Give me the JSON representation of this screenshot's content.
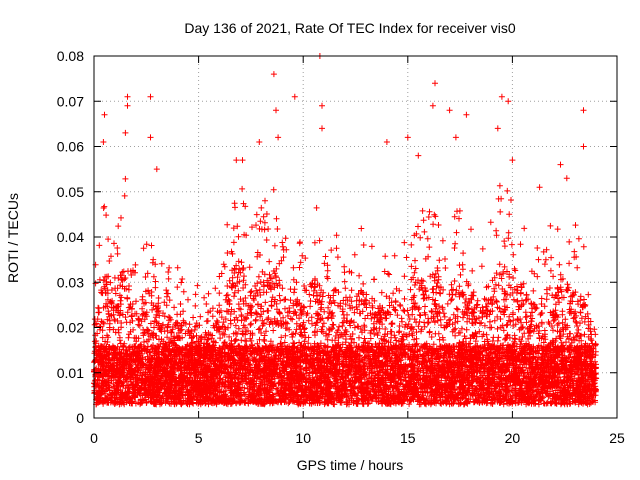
{
  "chart_data": {
    "type": "scatter",
    "title": "Day 136 of 2021, Rate Of TEC Index for receiver vis0",
    "xlabel": "GPS time / hours",
    "ylabel": "ROTI / TECUs",
    "xlim": [
      0,
      25
    ],
    "ylim": [
      0,
      0.08
    ],
    "xticks": [
      0,
      5,
      10,
      15,
      20,
      25
    ],
    "xtick_labels": [
      "0",
      "5",
      "10",
      "15",
      "20",
      "25"
    ],
    "yticks": [
      0,
      0.01,
      0.02,
      0.03,
      0.04,
      0.05,
      0.06,
      0.07,
      0.08
    ],
    "ytick_labels": [
      "0",
      "0.01",
      "0.02",
      "0.03",
      "0.04",
      "0.05",
      "0.06",
      "0.07",
      "0.08"
    ],
    "grid": true,
    "marker": "plus",
    "color": "#ff0000",
    "data_x_range": [
      0,
      24
    ],
    "base_level_approx": 0.007,
    "envelope": {
      "hours": [
        0,
        0.5,
        1,
        1.5,
        2,
        2.5,
        3,
        3.5,
        4,
        4.5,
        5,
        5.5,
        6,
        6.5,
        7,
        7.5,
        8,
        8.5,
        9,
        9.5,
        10,
        10.5,
        11,
        11.5,
        12,
        12.5,
        13,
        13.5,
        14,
        14.5,
        15,
        15.5,
        16,
        16.5,
        17,
        17.5,
        18,
        18.5,
        19,
        19.5,
        20,
        20.5,
        21,
        21.5,
        22,
        22.5,
        23,
        23.5,
        24
      ],
      "typical_max": [
        0.03,
        0.045,
        0.04,
        0.05,
        0.032,
        0.04,
        0.035,
        0.03,
        0.032,
        0.028,
        0.027,
        0.025,
        0.03,
        0.045,
        0.05,
        0.04,
        0.045,
        0.05,
        0.04,
        0.035,
        0.04,
        0.045,
        0.04,
        0.038,
        0.035,
        0.04,
        0.038,
        0.035,
        0.035,
        0.04,
        0.035,
        0.04,
        0.05,
        0.04,
        0.04,
        0.045,
        0.04,
        0.035,
        0.045,
        0.05,
        0.045,
        0.04,
        0.035,
        0.04,
        0.04,
        0.04,
        0.04,
        0.035,
        0.015
      ]
    },
    "notable_points": [
      {
        "x": 0.5,
        "y": 0.067
      },
      {
        "x": 0.45,
        "y": 0.061
      },
      {
        "x": 1.6,
        "y": 0.071
      },
      {
        "x": 1.6,
        "y": 0.069
      },
      {
        "x": 1.5,
        "y": 0.063
      },
      {
        "x": 2.7,
        "y": 0.071
      },
      {
        "x": 2.7,
        "y": 0.062
      },
      {
        "x": 3.0,
        "y": 0.055
      },
      {
        "x": 6.8,
        "y": 0.057
      },
      {
        "x": 7.1,
        "y": 0.057
      },
      {
        "x": 7.9,
        "y": 0.061
      },
      {
        "x": 8.6,
        "y": 0.076
      },
      {
        "x": 8.7,
        "y": 0.068
      },
      {
        "x": 8.8,
        "y": 0.062
      },
      {
        "x": 9.6,
        "y": 0.071
      },
      {
        "x": 10.8,
        "y": 0.08
      },
      {
        "x": 10.9,
        "y": 0.069
      },
      {
        "x": 10.9,
        "y": 0.064
      },
      {
        "x": 14.0,
        "y": 0.061
      },
      {
        "x": 15.0,
        "y": 0.062
      },
      {
        "x": 15.5,
        "y": 0.058
      },
      {
        "x": 16.3,
        "y": 0.074
      },
      {
        "x": 16.2,
        "y": 0.069
      },
      {
        "x": 17.0,
        "y": 0.068
      },
      {
        "x": 17.3,
        "y": 0.062
      },
      {
        "x": 17.8,
        "y": 0.067
      },
      {
        "x": 19.5,
        "y": 0.071
      },
      {
        "x": 19.8,
        "y": 0.07
      },
      {
        "x": 19.3,
        "y": 0.064
      },
      {
        "x": 20.0,
        "y": 0.057
      },
      {
        "x": 21.3,
        "y": 0.051
      },
      {
        "x": 22.3,
        "y": 0.056
      },
      {
        "x": 22.6,
        "y": 0.053
      },
      {
        "x": 23.4,
        "y": 0.068
      },
      {
        "x": 23.4,
        "y": 0.06
      }
    ]
  }
}
